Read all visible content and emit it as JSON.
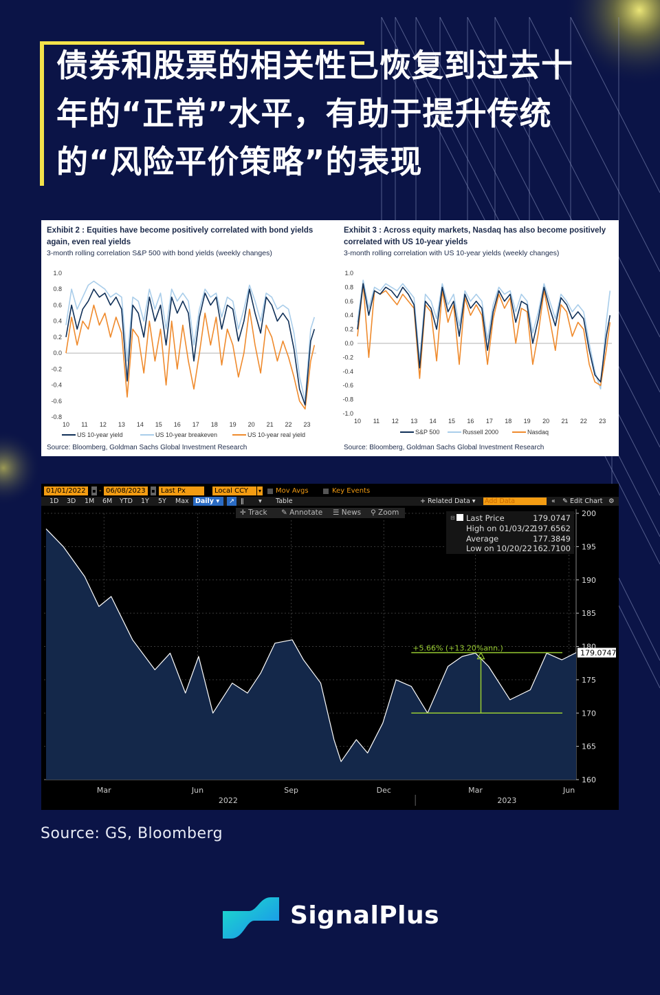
{
  "title": {
    "lines": [
      "债券和股票的相关性已恢复到过去十",
      "年的“正常”水平，有助于提升传统",
      "的“风险平价策略”的表现"
    ]
  },
  "colors": {
    "background": "#0b1447",
    "accent_yellow": "#f3e24a",
    "sp_dark_blue": "#0f2f57",
    "light_blue": "#a9cdea",
    "orange": "#ef8a2c",
    "bloomberg_orange": "#f39c12",
    "bloomberg_green": "#9acd32"
  },
  "exhibit2": {
    "title": "Exhibit 2 : Equities have become positively correlated with bond yields again, even real yields",
    "subtitle": "3-month rolling correlation S&P 500 with bond yields (weekly changes)",
    "source": "Source: Bloomberg, Goldman Sachs Global Investment Research"
  },
  "exhibit3": {
    "title": "Exhibit 3 : Across equity markets, Nasdaq has also become positively correlated with US 10-year yields",
    "subtitle": "3-month rolling correlation with US 10-year yields (weekly changes)",
    "source": "Source: Bloomberg, Goldman Sachs Global Investment Research"
  },
  "bloomberg": {
    "start_date": "01/01/2022",
    "end_date": "06/08/2023",
    "field": "Last Px",
    "currency": "Local CCY",
    "mov_avgs": "Mov Avgs",
    "key_events": "Key Events",
    "periods": [
      "1D",
      "3D",
      "1M",
      "6M",
      "YTD",
      "1Y",
      "5Y",
      "Max"
    ],
    "frequency": "Daily",
    "table_label": "Table",
    "related_data": "Related Data",
    "add_data": "Add Data",
    "edit_chart": "Edit Chart",
    "tools": [
      "Track",
      "Annotate",
      "News",
      "Zoom"
    ],
    "legend": [
      {
        "label": "Last Price",
        "value": "179.0747"
      },
      {
        "label": "High on 01/03/22",
        "value": "197.6562"
      },
      {
        "label": "Average",
        "value": "177.3849"
      },
      {
        "label": "Low on 10/20/22",
        "value": "162.7100"
      }
    ],
    "last_price_tag": "179.0747",
    "annotation": "+5.66% (+13.20%ann.)"
  },
  "chart_data": [
    {
      "type": "line",
      "title": "Exhibit 2 : Equities have become positively correlated with bond yields again, even real yields",
      "subtitle": "3-month rolling correlation S&P 500 with bond yields (weekly changes)",
      "x_ticks": [
        "10",
        "11",
        "12",
        "13",
        "14",
        "15",
        "16",
        "17",
        "18",
        "19",
        "20",
        "21",
        "22",
        "23"
      ],
      "y_ticks": [
        "1.0",
        "0.8",
        "0.6",
        "0.4",
        "0.2",
        "0.0",
        "-0.2",
        "-0.4",
        "-0.6",
        "-0.8"
      ],
      "ylim": [
        -0.8,
        1.0
      ],
      "xlim": [
        10,
        23.5
      ],
      "series": [
        {
          "name": "US 10-year yield",
          "color": "#0f2f57",
          "x": [
            10,
            10.3,
            10.6,
            10.9,
            11.2,
            11.5,
            11.8,
            12.1,
            12.4,
            12.7,
            13.0,
            13.3,
            13.6,
            13.9,
            14.2,
            14.5,
            14.8,
            15.1,
            15.4,
            15.7,
            16.0,
            16.3,
            16.6,
            16.9,
            17.2,
            17.5,
            17.8,
            18.1,
            18.4,
            18.7,
            19.0,
            19.3,
            19.6,
            19.9,
            20.2,
            20.5,
            20.8,
            21.1,
            21.4,
            21.7,
            22.0,
            22.3,
            22.6,
            22.9,
            23.2,
            23.4
          ],
          "values": [
            0.2,
            0.6,
            0.3,
            0.55,
            0.65,
            0.8,
            0.7,
            0.75,
            0.6,
            0.7,
            0.55,
            -0.35,
            0.6,
            0.5,
            0.2,
            0.7,
            0.4,
            0.6,
            0.1,
            0.7,
            0.5,
            0.65,
            0.5,
            -0.1,
            0.45,
            0.75,
            0.6,
            0.7,
            0.3,
            0.6,
            0.55,
            0.15,
            0.4,
            0.8,
            0.5,
            0.25,
            0.7,
            0.6,
            0.4,
            0.5,
            0.4,
            0.05,
            -0.45,
            -0.65,
            0.15,
            0.3
          ]
        },
        {
          "name": "US 10-year breakeven",
          "color": "#a9cdea",
          "x": [
            10,
            10.3,
            10.6,
            10.9,
            11.2,
            11.5,
            11.8,
            12.1,
            12.4,
            12.7,
            13.0,
            13.3,
            13.6,
            13.9,
            14.2,
            14.5,
            14.8,
            15.1,
            15.4,
            15.7,
            16.0,
            16.3,
            16.6,
            16.9,
            17.2,
            17.5,
            17.8,
            18.1,
            18.4,
            18.7,
            19.0,
            19.3,
            19.6,
            19.9,
            20.2,
            20.5,
            20.8,
            21.1,
            21.4,
            21.7,
            22.0,
            22.3,
            22.6,
            22.9,
            23.2,
            23.4
          ],
          "values": [
            0.35,
            0.8,
            0.55,
            0.7,
            0.85,
            0.9,
            0.85,
            0.8,
            0.7,
            0.75,
            0.7,
            -0.1,
            0.7,
            0.65,
            0.4,
            0.8,
            0.55,
            0.75,
            0.3,
            0.8,
            0.65,
            0.75,
            0.65,
            0.1,
            0.55,
            0.8,
            0.7,
            0.75,
            0.45,
            0.7,
            0.65,
            0.3,
            0.55,
            0.85,
            0.65,
            0.4,
            0.75,
            0.7,
            0.55,
            0.6,
            0.55,
            0.25,
            -0.3,
            -0.6,
            0.3,
            0.45
          ]
        },
        {
          "name": "US 10-year real yield",
          "color": "#ef8a2c",
          "x": [
            10,
            10.3,
            10.6,
            10.9,
            11.2,
            11.5,
            11.8,
            12.1,
            12.4,
            12.7,
            13.0,
            13.3,
            13.6,
            13.9,
            14.2,
            14.5,
            14.8,
            15.1,
            15.4,
            15.7,
            16.0,
            16.3,
            16.6,
            16.9,
            17.2,
            17.5,
            17.8,
            18.1,
            18.4,
            18.7,
            19.0,
            19.3,
            19.6,
            19.9,
            20.2,
            20.5,
            20.8,
            21.1,
            21.4,
            21.7,
            22.0,
            22.3,
            22.6,
            22.9,
            23.2,
            23.4
          ],
          "values": [
            0.0,
            0.45,
            0.1,
            0.4,
            0.3,
            0.6,
            0.35,
            0.5,
            0.2,
            0.45,
            0.25,
            -0.55,
            0.3,
            0.2,
            -0.25,
            0.4,
            -0.1,
            0.3,
            -0.4,
            0.4,
            -0.2,
            0.35,
            -0.1,
            -0.45,
            0.0,
            0.5,
            0.1,
            0.45,
            -0.15,
            0.3,
            0.1,
            -0.3,
            0.0,
            0.55,
            0.1,
            -0.25,
            0.35,
            0.2,
            -0.1,
            0.15,
            -0.05,
            -0.3,
            -0.6,
            -0.7,
            -0.1,
            0.1
          ]
        }
      ]
    },
    {
      "type": "line",
      "title": "Exhibit 3 : Across equity markets, Nasdaq has also become positively correlated with US 10-year yields",
      "subtitle": "3-month rolling correlation with US 10-year yields (weekly changes)",
      "x_ticks": [
        "10",
        "11",
        "12",
        "13",
        "14",
        "15",
        "16",
        "17",
        "18",
        "19",
        "20",
        "21",
        "22",
        "23"
      ],
      "y_ticks": [
        "1.0",
        "0.8",
        "0.6",
        "0.4",
        "0.2",
        "0.0",
        "-0.2",
        "-0.4",
        "-0.6",
        "-0.8",
        "-1.0"
      ],
      "ylim": [
        -1.0,
        1.0
      ],
      "xlim": [
        10,
        23.5
      ],
      "series": [
        {
          "name": "S&P 500",
          "color": "#0f2f57",
          "x": [
            10,
            10.3,
            10.6,
            10.9,
            11.2,
            11.5,
            11.8,
            12.1,
            12.4,
            12.7,
            13.0,
            13.3,
            13.6,
            13.9,
            14.2,
            14.5,
            14.8,
            15.1,
            15.4,
            15.7,
            16.0,
            16.3,
            16.6,
            16.9,
            17.2,
            17.5,
            17.8,
            18.1,
            18.4,
            18.7,
            19.0,
            19.3,
            19.6,
            19.9,
            20.2,
            20.5,
            20.8,
            21.1,
            21.4,
            21.7,
            22.0,
            22.3,
            22.6,
            22.9,
            23.2,
            23.4
          ],
          "values": [
            0.2,
            0.85,
            0.4,
            0.75,
            0.7,
            0.8,
            0.75,
            0.65,
            0.8,
            0.7,
            0.55,
            -0.35,
            0.6,
            0.5,
            0.2,
            0.8,
            0.45,
            0.6,
            0.1,
            0.7,
            0.5,
            0.6,
            0.5,
            -0.1,
            0.45,
            0.75,
            0.6,
            0.7,
            0.3,
            0.6,
            0.55,
            0.0,
            0.35,
            0.8,
            0.5,
            0.25,
            0.65,
            0.55,
            0.35,
            0.45,
            0.35,
            -0.1,
            -0.45,
            -0.55,
            0.1,
            0.4
          ]
        },
        {
          "name": "Russell 2000",
          "color": "#a9cdea",
          "x": [
            10,
            10.3,
            10.6,
            10.9,
            11.2,
            11.5,
            11.8,
            12.1,
            12.4,
            12.7,
            13.0,
            13.3,
            13.6,
            13.9,
            14.2,
            14.5,
            14.8,
            15.1,
            15.4,
            15.7,
            16.0,
            16.3,
            16.6,
            16.9,
            17.2,
            17.5,
            17.8,
            18.1,
            18.4,
            18.7,
            19.0,
            19.3,
            19.6,
            19.9,
            20.2,
            20.5,
            20.8,
            21.1,
            21.4,
            21.7,
            22.0,
            22.3,
            22.6,
            22.9,
            23.2,
            23.4
          ],
          "values": [
            0.3,
            0.9,
            0.5,
            0.8,
            0.75,
            0.85,
            0.8,
            0.75,
            0.85,
            0.75,
            0.65,
            -0.25,
            0.7,
            0.6,
            0.35,
            0.85,
            0.55,
            0.7,
            0.25,
            0.75,
            0.6,
            0.7,
            0.6,
            0.05,
            0.55,
            0.8,
            0.7,
            0.75,
            0.45,
            0.7,
            0.6,
            0.15,
            0.45,
            0.85,
            0.6,
            0.35,
            0.7,
            0.6,
            0.45,
            0.55,
            0.45,
            0.0,
            -0.4,
            -0.65,
            0.3,
            0.75
          ]
        },
        {
          "name": "Nasdaq",
          "color": "#ef8a2c",
          "x": [
            10,
            10.3,
            10.6,
            10.9,
            11.2,
            11.5,
            11.8,
            12.1,
            12.4,
            12.7,
            13.0,
            13.3,
            13.6,
            13.9,
            14.2,
            14.5,
            14.8,
            15.1,
            15.4,
            15.7,
            16.0,
            16.3,
            16.6,
            16.9,
            17.2,
            17.5,
            17.8,
            18.1,
            18.4,
            18.7,
            19.0,
            19.3,
            19.6,
            19.9,
            20.2,
            20.5,
            20.8,
            21.1,
            21.4,
            21.7,
            22.0,
            22.3,
            22.6,
            22.9,
            23.2,
            23.4
          ],
          "values": [
            0.1,
            0.85,
            -0.2,
            0.75,
            0.7,
            0.75,
            0.65,
            0.55,
            0.7,
            0.6,
            0.5,
            -0.5,
            0.55,
            0.45,
            -0.25,
            0.75,
            0.3,
            0.55,
            -0.3,
            0.65,
            0.4,
            0.55,
            0.4,
            -0.3,
            0.35,
            0.7,
            0.5,
            0.65,
            0.0,
            0.5,
            0.45,
            -0.3,
            0.15,
            0.75,
            0.35,
            -0.1,
            0.55,
            0.45,
            0.1,
            0.3,
            0.2,
            -0.3,
            -0.55,
            -0.6,
            -0.1,
            0.3
          ]
        }
      ]
    },
    {
      "type": "area",
      "x_ticks": [
        "Mar",
        "Jun",
        "Sep",
        "Dec",
        "Mar",
        "Jun"
      ],
      "x_years": [
        "2022",
        "2023"
      ],
      "y_ticks": [
        "200",
        "195",
        "190",
        "185",
        "180",
        "175",
        "170",
        "165",
        "160"
      ],
      "ylim": [
        160,
        200
      ],
      "xlim": [
        "2022-01-01",
        "2023-06-08"
      ],
      "series": [
        {
          "name": "Last Price",
          "color": "#ffffff",
          "x": [
            "2022-01-03",
            "2022-01-20",
            "2022-02-10",
            "2022-02-24",
            "2022-03-08",
            "2022-03-29",
            "2022-04-20",
            "2022-05-05",
            "2022-05-20",
            "2022-06-02",
            "2022-06-16",
            "2022-07-05",
            "2022-07-20",
            "2022-08-02",
            "2022-08-16",
            "2022-09-02",
            "2022-09-13",
            "2022-09-30",
            "2022-10-13",
            "2022-10-20",
            "2022-11-04",
            "2022-11-15",
            "2022-11-30",
            "2022-12-13",
            "2022-12-28",
            "2023-01-13",
            "2023-02-02",
            "2023-02-16",
            "2023-03-01",
            "2023-03-14",
            "2023-04-04",
            "2023-04-24",
            "2023-05-10",
            "2023-05-25",
            "2023-06-08"
          ],
          "values": [
            197.66,
            195.0,
            190.5,
            186.0,
            187.5,
            181.0,
            176.5,
            179.0,
            173.0,
            178.5,
            170.0,
            174.5,
            173.0,
            176.0,
            180.5,
            181.0,
            178.0,
            174.5,
            166.0,
            162.71,
            166.0,
            164.0,
            168.5,
            175.0,
            174.0,
            170.0,
            177.0,
            178.5,
            179.0,
            177.0,
            172.0,
            173.5,
            179.0,
            178.0,
            179.07
          ]
        }
      ]
    }
  ]
}
